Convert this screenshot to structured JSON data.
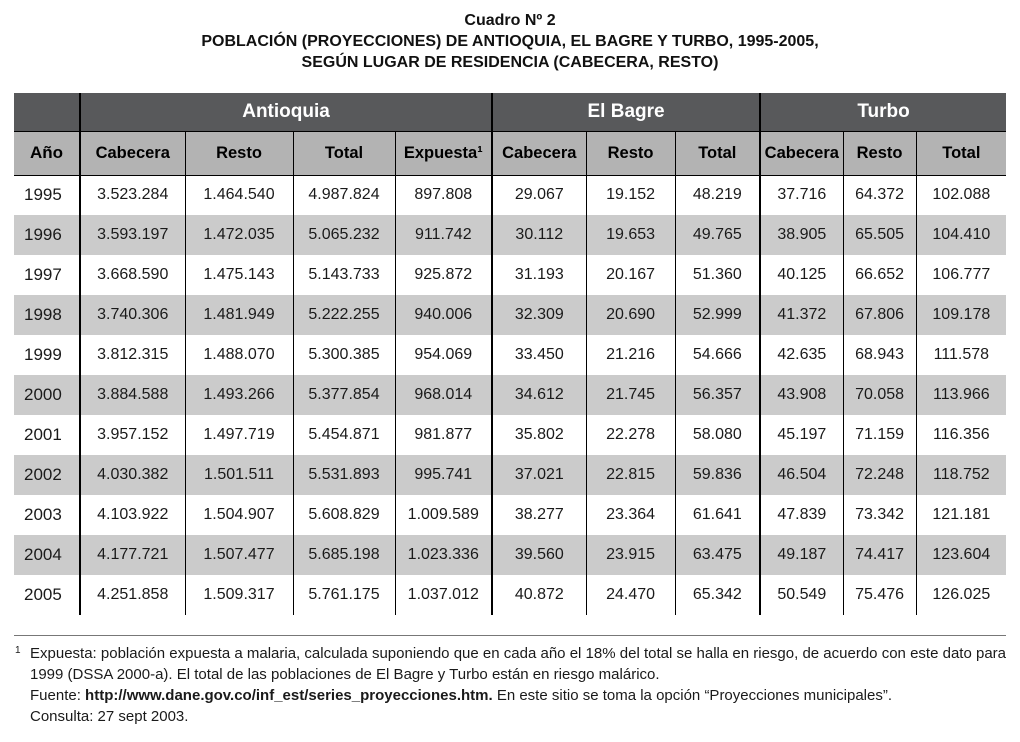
{
  "title": {
    "line1": "Cuadro Nº 2",
    "line2": "POBLACIÓN (PROYECCIONES) DE ANTIOQUIA, EL BAGRE Y TURBO, 1995-2005,",
    "line3": "SEGÚN LUGAR DE RESIDENCIA (CABECERA, RESTO)"
  },
  "table": {
    "groups": [
      {
        "label": "Antioquia",
        "span": 4
      },
      {
        "label": "El Bagre",
        "span": 3
      },
      {
        "label": "Turbo",
        "span": 3
      }
    ],
    "columns": [
      "Año",
      "Cabecera",
      "Resto",
      "Total",
      "Expuesta¹",
      "Cabecera",
      "Resto",
      "Total",
      "Cabecera",
      "Resto",
      "Total"
    ],
    "rows": [
      [
        "1995",
        "3.523.284",
        "1.464.540",
        "4.987.824",
        "897.808",
        "29.067",
        "19.152",
        "48.219",
        "37.716",
        "64.372",
        "102.088"
      ],
      [
        "1996",
        "3.593.197",
        "1.472.035",
        "5.065.232",
        "911.742",
        "30.112",
        "19.653",
        "49.765",
        "38.905",
        "65.505",
        "104.410"
      ],
      [
        "1997",
        "3.668.590",
        "1.475.143",
        "5.143.733",
        "925.872",
        "31.193",
        "20.167",
        "51.360",
        "40.125",
        "66.652",
        "106.777"
      ],
      [
        "1998",
        "3.740.306",
        "1.481.949",
        "5.222.255",
        "940.006",
        "32.309",
        "20.690",
        "52.999",
        "41.372",
        "67.806",
        "109.178"
      ],
      [
        "1999",
        "3.812.315",
        "1.488.070",
        "5.300.385",
        "954.069",
        "33.450",
        "21.216",
        "54.666",
        "42.635",
        "68.943",
        "111.578"
      ],
      [
        "2000",
        "3.884.588",
        "1.493.266",
        "5.377.854",
        "968.014",
        "34.612",
        "21.745",
        "56.357",
        "43.908",
        "70.058",
        "113.966"
      ],
      [
        "2001",
        "3.957.152",
        "1.497.719",
        "5.454.871",
        "981.877",
        "35.802",
        "22.278",
        "58.080",
        "45.197",
        "71.159",
        "116.356"
      ],
      [
        "2002",
        "4.030.382",
        "1.501.511",
        "5.531.893",
        "995.741",
        "37.021",
        "22.815",
        "59.836",
        "46.504",
        "72.248",
        "118.752"
      ],
      [
        "2003",
        "4.103.922",
        "1.504.907",
        "5.608.829",
        "1.009.589",
        "38.277",
        "23.364",
        "61.641",
        "47.839",
        "73.342",
        "121.181"
      ],
      [
        "2004",
        "4.177.721",
        "1.507.477",
        "5.685.198",
        "1.023.336",
        "39.560",
        "23.915",
        "63.475",
        "49.187",
        "74.417",
        "123.604"
      ],
      [
        "2005",
        "4.251.858",
        "1.509.317",
        "5.761.175",
        "1.037.012",
        "40.872",
        "24.470",
        "65.342",
        "50.549",
        "75.476",
        "126.025"
      ]
    ]
  },
  "footnote": {
    "marker": "1",
    "note": "Expuesta: población expuesta a malaria, calculada suponiendo que en cada año el 18% del total se halla en riesgo, de acuerdo con este dato para 1999 (DSSA 2000-a). El total de las poblaciones de El Bagre y Turbo están en riesgo malárico.",
    "source_label": "Fuente:",
    "source_url": "http://www.dane.gov.co/inf_est/series_proyecciones.htm.",
    "source_rest": "En este sitio se toma la opción “Proyecciones municipales”.",
    "consulta": "Consulta: 27 sept 2003."
  },
  "colors": {
    "header_dark": "#58595b",
    "header_gray": "#b3b3b3",
    "row_alt": "#cbcbcb",
    "border": "#000000"
  }
}
